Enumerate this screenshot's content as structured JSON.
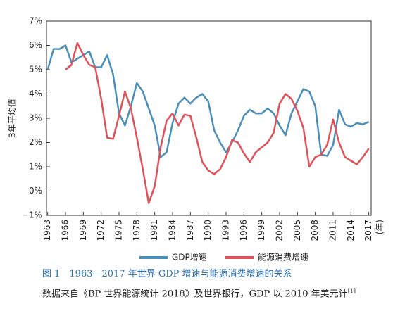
{
  "chart_data": {
    "type": "line",
    "y_axis_label": "3年平均值",
    "x_unit_label": "(年)",
    "x": [
      1963,
      1964,
      1965,
      1966,
      1967,
      1968,
      1969,
      1970,
      1971,
      1972,
      1973,
      1974,
      1975,
      1976,
      1977,
      1978,
      1979,
      1980,
      1981,
      1982,
      1983,
      1984,
      1985,
      1986,
      1987,
      1988,
      1989,
      1990,
      1991,
      1992,
      1993,
      1994,
      1995,
      1996,
      1997,
      1998,
      1999,
      2000,
      2001,
      2002,
      2003,
      2004,
      2005,
      2006,
      2007,
      2008,
      2009,
      2010,
      2011,
      2012,
      2013,
      2014,
      2015,
      2016,
      2017
    ],
    "xlim": [
      1962.8,
      2017.4
    ],
    "xticks": [
      1963,
      1966,
      1969,
      1972,
      1975,
      1978,
      1981,
      1984,
      1987,
      1990,
      1993,
      1996,
      1999,
      2002,
      2005,
      2008,
      2011,
      2014,
      2017
    ],
    "ylim": [
      -1,
      7
    ],
    "yticks": [
      {
        "value": -1,
        "label": "−1%"
      },
      {
        "value": 0,
        "label": "0%"
      },
      {
        "value": 1,
        "label": "1%"
      },
      {
        "value": 2,
        "label": "2%"
      },
      {
        "value": 3,
        "label": "3%"
      },
      {
        "value": 4,
        "label": "4%"
      },
      {
        "value": 5,
        "label": "5%"
      },
      {
        "value": 6,
        "label": "6%"
      },
      {
        "value": 7,
        "label": "7%"
      }
    ],
    "series": [
      {
        "name": "GDP增速",
        "color": "#4a8fba",
        "values": [
          5.0,
          5.85,
          5.85,
          6.0,
          5.3,
          5.45,
          5.6,
          5.75,
          5.1,
          5.1,
          5.6,
          4.8,
          3.2,
          2.7,
          3.5,
          4.45,
          4.1,
          3.4,
          2.7,
          1.4,
          1.6,
          2.8,
          3.6,
          3.85,
          3.6,
          3.85,
          4.0,
          3.7,
          2.5,
          2.0,
          1.6,
          2.0,
          2.5,
          3.1,
          3.35,
          3.2,
          3.2,
          3.4,
          3.2,
          2.7,
          2.3,
          3.2,
          3.7,
          4.2,
          4.1,
          3.5,
          1.5,
          1.45,
          1.9,
          3.35,
          2.75,
          2.65,
          2.8,
          2.75,
          2.85
        ]
      },
      {
        "name": "能源消费增速",
        "color": "#e0525a",
        "values": [
          null,
          null,
          null,
          5.0,
          5.2,
          6.1,
          5.6,
          5.2,
          5.1,
          3.8,
          2.2,
          2.15,
          3.1,
          4.1,
          3.4,
          2.2,
          0.9,
          -0.5,
          0.2,
          1.8,
          2.9,
          3.2,
          2.7,
          3.15,
          3.1,
          2.2,
          1.2,
          0.85,
          0.7,
          0.9,
          1.4,
          2.1,
          2.0,
          1.55,
          1.2,
          1.6,
          1.8,
          2.0,
          2.4,
          3.6,
          4.0,
          3.8,
          3.3,
          2.6,
          1.0,
          1.4,
          1.5,
          1.9,
          2.95,
          2.0,
          1.4,
          1.25,
          1.1,
          1.4,
          1.75
        ]
      }
    ]
  },
  "caption": {
    "title": "图 1　1963—2017 年世界 GDP 增速与能源消费增速的关系",
    "note": "数据来自《BP 世界能源统计 2018》及世界银行，GDP 以 2010 年美元计",
    "note_ref": "[1]"
  }
}
